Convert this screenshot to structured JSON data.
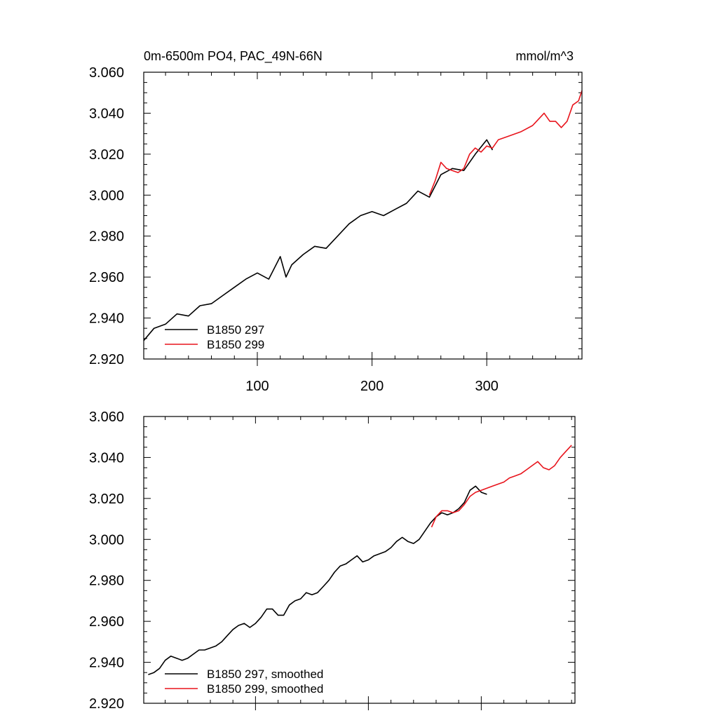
{
  "chart_data": [
    {
      "type": "line",
      "title": "0m-6500m PO4, PAC_49N-66N",
      "units": "mmol/m^3",
      "xlim": [
        1,
        383
      ],
      "ylim": [
        2.92,
        3.06
      ],
      "yticks": [
        "3.060",
        "3.040",
        "3.020",
        "3.000",
        "2.980",
        "2.960",
        "2.940",
        "2.920"
      ],
      "xticks": [
        "100",
        "200",
        "300"
      ],
      "legend_position": "bottom-left",
      "series": [
        {
          "name": "B1850 297",
          "color": "#000000",
          "x": [
            1,
            10,
            20,
            30,
            40,
            50,
            60,
            70,
            80,
            90,
            100,
            110,
            120,
            125,
            130,
            140,
            150,
            160,
            170,
            180,
            190,
            200,
            210,
            220,
            230,
            240,
            250,
            260,
            270,
            280,
            290,
            300,
            305
          ],
          "y": [
            2.929,
            2.935,
            2.937,
            2.942,
            2.941,
            2.946,
            2.947,
            2.951,
            2.955,
            2.959,
            2.962,
            2.959,
            2.97,
            2.96,
            2.966,
            2.971,
            2.975,
            2.974,
            2.98,
            2.986,
            2.99,
            2.992,
            2.99,
            2.993,
            2.996,
            3.002,
            2.999,
            3.01,
            3.013,
            3.012,
            3.02,
            3.027,
            3.022
          ]
        },
        {
          "name": "B1850 299",
          "color": "#e8141c",
          "x": [
            250,
            255,
            260,
            265,
            270,
            275,
            280,
            285,
            290,
            295,
            300,
            305,
            310,
            320,
            330,
            340,
            350,
            355,
            360,
            365,
            370,
            375,
            380,
            383
          ],
          "y": [
            3.0,
            3.007,
            3.016,
            3.013,
            3.012,
            3.011,
            3.013,
            3.02,
            3.023,
            3.021,
            3.024,
            3.023,
            3.027,
            3.029,
            3.031,
            3.034,
            3.04,
            3.036,
            3.036,
            3.033,
            3.036,
            3.044,
            3.046,
            3.051
          ]
        }
      ]
    },
    {
      "type": "line",
      "xlim": [
        1,
        383
      ],
      "ylim": [
        2.92,
        3.06
      ],
      "yticks": [
        "3.060",
        "3.040",
        "3.020",
        "3.000",
        "2.980",
        "2.960",
        "2.940",
        "2.920"
      ],
      "legend_position": "bottom-left",
      "series": [
        {
          "name": "B1850 297, smoothed",
          "color": "#000000",
          "x": [
            5,
            10,
            15,
            20,
            25,
            30,
            35,
            40,
            45,
            50,
            55,
            60,
            65,
            70,
            75,
            80,
            85,
            90,
            95,
            100,
            105,
            110,
            115,
            120,
            125,
            130,
            135,
            140,
            145,
            150,
            155,
            160,
            165,
            170,
            175,
            180,
            185,
            190,
            195,
            200,
            205,
            210,
            215,
            220,
            225,
            230,
            235,
            240,
            245,
            250,
            255,
            260,
            265,
            270,
            275,
            280,
            285,
            290,
            295,
            300,
            305
          ],
          "y": [
            2.934,
            2.935,
            2.937,
            2.941,
            2.943,
            2.942,
            2.941,
            2.942,
            2.944,
            2.946,
            2.946,
            2.947,
            2.948,
            2.95,
            2.953,
            2.956,
            2.958,
            2.959,
            2.957,
            2.959,
            2.962,
            2.966,
            2.966,
            2.963,
            2.963,
            2.968,
            2.97,
            2.971,
            2.974,
            2.973,
            2.974,
            2.977,
            2.98,
            2.984,
            2.987,
            2.988,
            2.99,
            2.992,
            2.989,
            2.99,
            2.992,
            2.993,
            2.994,
            2.996,
            2.999,
            3.001,
            2.999,
            2.998,
            3.0,
            3.004,
            3.008,
            3.011,
            3.013,
            3.012,
            3.013,
            3.015,
            3.018,
            3.024,
            3.026,
            3.023,
            3.022
          ]
        },
        {
          "name": "B1850 299, smoothed",
          "color": "#e8141c",
          "x": [
            256,
            260,
            265,
            270,
            275,
            280,
            285,
            290,
            295,
            300,
            305,
            310,
            315,
            320,
            325,
            330,
            335,
            340,
            345,
            350,
            355,
            360,
            365,
            370,
            375,
            380
          ],
          "y": [
            3.006,
            3.011,
            3.014,
            3.014,
            3.013,
            3.014,
            3.017,
            3.021,
            3.023,
            3.024,
            3.025,
            3.026,
            3.027,
            3.028,
            3.03,
            3.031,
            3.032,
            3.034,
            3.036,
            3.038,
            3.035,
            3.034,
            3.036,
            3.04,
            3.043,
            3.046
          ]
        }
      ]
    }
  ]
}
